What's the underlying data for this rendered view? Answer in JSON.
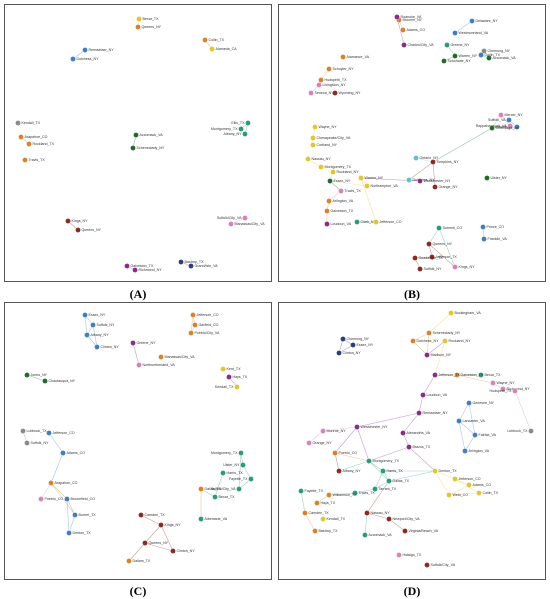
{
  "colors": {
    "green": "#1f6b2a",
    "orange": "#d9822b",
    "yellow": "#e3c62b",
    "blue": "#3f7fc0",
    "purple": "#8a2b8a",
    "teal": "#2a9a7a",
    "darkred": "#8c2a22",
    "pink": "#d583b8",
    "gray": "#8a8a8a",
    "cyan": "#5cc3c9",
    "navy": "#2a3f7a",
    "lavender": "#b79bd6",
    "edge": "#c7b3cf"
  },
  "panels": [
    {
      "id": "A",
      "caption": "(A)",
      "nodes": [
        {
          "label": "Bexar_TX",
          "color": "yellow"
        },
        {
          "label": "Queens_NY",
          "color": "orange"
        },
        {
          "label": "Collin_TX",
          "color": "orange"
        },
        {
          "label": "Alameda_CA",
          "color": "yellow"
        },
        {
          "label": "Rensselaer_NY",
          "color": "blue"
        },
        {
          "label": "Dutchess_NY",
          "color": "blue"
        },
        {
          "label": "Kendall_TX",
          "color": "gray"
        },
        {
          "label": "Arapahoe_CO",
          "color": "orange"
        },
        {
          "label": "Rockland_TX",
          "color": "orange"
        },
        {
          "label": "Travis_TX",
          "color": "orange"
        },
        {
          "label": "Accomack_VA",
          "color": "green"
        },
        {
          "label": "Schenectady_NY",
          "color": "green"
        },
        {
          "label": "Ellis_TX",
          "color": "teal"
        },
        {
          "label": "Montgomery_TX",
          "color": "teal"
        },
        {
          "label": "Albany_NY",
          "color": "teal"
        },
        {
          "label": "Kings_NY",
          "color": "darkred"
        },
        {
          "label": "Queens_NY",
          "color": "darkred"
        },
        {
          "label": "Suffolk/City_VA",
          "color": "pink"
        },
        {
          "label": "Manassas/City_VA",
          "color": "pink"
        },
        {
          "label": "Galveston_TX",
          "color": "purple"
        },
        {
          "label": "Richmond_NY",
          "color": "purple"
        },
        {
          "label": "Bastrop_TX",
          "color": "navy"
        },
        {
          "label": "Grand/Isle_VA",
          "color": "navy"
        }
      ]
    },
    {
      "id": "B",
      "caption": "(B)",
      "nodes": [
        {
          "label": "Broome_NY",
          "color": "orange"
        },
        {
          "label": "Adams_CO",
          "color": "orange"
        },
        {
          "label": "Roanoke_VA",
          "color": "purple"
        },
        {
          "label": "Charles/City_VA",
          "color": "purple"
        },
        {
          "label": "Delaware_NY",
          "color": "blue"
        },
        {
          "label": "Westmoreland_VA",
          "color": "blue"
        },
        {
          "label": "Greene_NY",
          "color": "teal"
        },
        {
          "label": "Warren_NY",
          "color": "green"
        },
        {
          "label": "Schoharie_NY",
          "color": "green"
        },
        {
          "label": "Chemung_NY",
          "color": "gray"
        },
        {
          "label": "Accomack_VA",
          "color": "green"
        },
        {
          "label": "Collin_TX",
          "color": "blue"
        },
        {
          "label": "Alamance_VA",
          "color": "orange"
        },
        {
          "label": "Schuyler_NY",
          "color": "orange"
        },
        {
          "label": "Hudspeth_TX",
          "color": "orange"
        },
        {
          "label": "Livingston_NY",
          "color": "pink"
        },
        {
          "label": "Seneca_NY",
          "color": "pink"
        },
        {
          "label": "Wyoming_NY",
          "color": "darkred"
        },
        {
          "label": "Suffolk_VA",
          "color": "blue"
        },
        {
          "label": "Lubbock_TX",
          "color": "blue"
        },
        {
          "label": "Wayne_NY",
          "color": "yellow"
        },
        {
          "label": "Chesapeake/City_VA",
          "color": "yellow"
        },
        {
          "label": "Cortland_NY",
          "color": "yellow"
        },
        {
          "label": "Nassau_NY",
          "color": "yellow"
        },
        {
          "label": "Montgomery_TX",
          "color": "yellow"
        },
        {
          "label": "Rockland_NY",
          "color": "yellow"
        },
        {
          "label": "Ontario_NY",
          "color": "cyan"
        },
        {
          "label": "Tompkins_NY",
          "color": "darkred"
        },
        {
          "label": "Orange_NY",
          "color": "darkred"
        },
        {
          "label": "Mercer_NY",
          "color": "pink"
        },
        {
          "label": "Rappahannock_VA",
          "color": "pink"
        },
        {
          "label": "Onondaga_NY",
          "color": "green"
        },
        {
          "label": "Ulster_NY",
          "color": "green"
        },
        {
          "label": "Dutchess_NY",
          "color": "cyan"
        },
        {
          "label": "Westchester_NY",
          "color": "purple"
        },
        {
          "label": "Warren_NY",
          "color": "yellow"
        },
        {
          "label": "Northampton_VA",
          "color": "yellow"
        },
        {
          "label": "Essex_NY",
          "color": "green"
        },
        {
          "label": "Travis_TX",
          "color": "pink"
        },
        {
          "label": "Arlington_VA",
          "color": "orange"
        },
        {
          "label": "Galveston_TX",
          "color": "orange"
        },
        {
          "label": "Loudoun_VA",
          "color": "purple"
        },
        {
          "label": "Clark_NY",
          "color": "teal"
        },
        {
          "label": "Jefferson_CO",
          "color": "yellow"
        },
        {
          "label": "Summit_CO",
          "color": "teal"
        },
        {
          "label": "Queens_NY",
          "color": "darkred"
        },
        {
          "label": "Jefferson_TX",
          "color": "darkred"
        },
        {
          "label": "Guadalupe_TX",
          "color": "darkred"
        },
        {
          "label": "Suffolk_NY",
          "color": "darkred"
        },
        {
          "label": "Kings_NY",
          "color": "pink"
        },
        {
          "label": "Prince_CO",
          "color": "blue"
        },
        {
          "label": "Franklin_VA",
          "color": "blue"
        }
      ]
    },
    {
      "id": "C",
      "caption": "(C)",
      "nodes": [
        {
          "label": "Essex_NY",
          "color": "blue"
        },
        {
          "label": "Suffolk_NY",
          "color": "blue"
        },
        {
          "label": "Albany_NY",
          "color": "blue"
        },
        {
          "label": "Clinton_NY",
          "color": "blue"
        },
        {
          "label": "Jefferson_CO",
          "color": "orange"
        },
        {
          "label": "Garfield_CO",
          "color": "orange"
        },
        {
          "label": "Pueblo/City_VA",
          "color": "orange"
        },
        {
          "label": "Greene_NY",
          "color": "purple"
        },
        {
          "label": "Northumberland_VA",
          "color": "pink"
        },
        {
          "label": "Manassas/City_VA",
          "color": "orange"
        },
        {
          "label": "Jones_NY",
          "color": "green"
        },
        {
          "label": "Chautauqua_NY",
          "color": "green"
        },
        {
          "label": "Kent_TX",
          "color": "yellow"
        },
        {
          "label": "Hays_TX",
          "color": "purple"
        },
        {
          "label": "Kendall_TX",
          "color": "yellow"
        },
        {
          "label": "Lubbock_TX",
          "color": "gray"
        },
        {
          "label": "Suffolk_NY",
          "color": "gray"
        },
        {
          "label": "Jefferson_CO",
          "color": "blue"
        },
        {
          "label": "Adams_CO",
          "color": "blue"
        },
        {
          "label": "Arapahoe_CO",
          "color": "orange"
        },
        {
          "label": "Broomfield_CO",
          "color": "blue"
        },
        {
          "label": "Burnet_TX",
          "color": "blue"
        },
        {
          "label": "Denton_TX",
          "color": "blue"
        },
        {
          "label": "Pueblo_CO",
          "color": "pink"
        },
        {
          "label": "Montgomery_TX",
          "color": "teal"
        },
        {
          "label": "Ulster_NY",
          "color": "teal"
        },
        {
          "label": "Fayette_TX",
          "color": "teal"
        },
        {
          "label": "Suffolk/City_VA",
          "color": "teal"
        },
        {
          "label": "Harris_TX",
          "color": "teal"
        },
        {
          "label": "Bexar_TX",
          "color": "teal"
        },
        {
          "label": "Dallas_TX",
          "color": "orange"
        },
        {
          "label": "Albemarle_VA",
          "color": "teal"
        },
        {
          "label": "Camden_TX",
          "color": "darkred"
        },
        {
          "label": "Kings_NY",
          "color": "darkred"
        },
        {
          "label": "Queens_NY",
          "color": "darkred"
        },
        {
          "label": "Clinton_NY",
          "color": "darkred"
        },
        {
          "label": "Dallam_TX",
          "color": "orange"
        }
      ]
    },
    {
      "id": "D",
      "caption": "(D)",
      "nodes": [
        {
          "label": "Buckingham_VA",
          "color": "yellow"
        },
        {
          "label": "Schenectady_NY",
          "color": "orange"
        },
        {
          "label": "Dutchess_NY",
          "color": "orange"
        },
        {
          "label": "Madison_NY",
          "color": "purple"
        },
        {
          "label": "Rockland_NY",
          "color": "yellow"
        },
        {
          "label": "Chemung_NY",
          "color": "navy"
        },
        {
          "label": "Essex_NY",
          "color": "navy"
        },
        {
          "label": "Clinton_NY",
          "color": "navy"
        },
        {
          "label": "Bexar_TX",
          "color": "teal"
        },
        {
          "label": "Galveston_TX",
          "color": "orange"
        },
        {
          "label": "Wayne_NY",
          "color": "pink"
        },
        {
          "label": "Richmond_NY",
          "color": "pink"
        },
        {
          "label": "Hudspeth_TX",
          "color": "pink"
        },
        {
          "label": "Lubbock_TX",
          "color": "gray"
        },
        {
          "label": "Jefferson_TX",
          "color": "purple"
        },
        {
          "label": "Loudoun_VA",
          "color": "purple"
        },
        {
          "label": "Rensselaer_NY",
          "color": "purple"
        },
        {
          "label": "Genesee_NY",
          "color": "blue"
        },
        {
          "label": "Lancaster_VA",
          "color": "blue"
        },
        {
          "label": "Fairfax_VA",
          "color": "blue"
        },
        {
          "label": "Arlington_VA",
          "color": "blue"
        },
        {
          "label": "Brazos_TX",
          "color": "purple"
        },
        {
          "label": "Denton_TX",
          "color": "yellow"
        },
        {
          "label": "Jefferson_CO",
          "color": "yellow"
        },
        {
          "label": "Adams_CO",
          "color": "yellow"
        },
        {
          "label": "Weld_CO",
          "color": "yellow"
        },
        {
          "label": "Collin_TX",
          "color": "yellow"
        },
        {
          "label": "Montgomery_TX",
          "color": "teal"
        },
        {
          "label": "Harris_TX",
          "color": "teal"
        },
        {
          "label": "Dallas_TX",
          "color": "teal"
        },
        {
          "label": "Tarrant_TX",
          "color": "teal"
        },
        {
          "label": "Travis_TX",
          "color": "teal"
        },
        {
          "label": "Williamson_TX",
          "color": "orange"
        },
        {
          "label": "Hays_TX",
          "color": "orange"
        },
        {
          "label": "Albany_NY",
          "color": "darkred"
        },
        {
          "label": "Pueblo_CO",
          "color": "orange"
        },
        {
          "label": "Alexandria_VA",
          "color": "purple"
        },
        {
          "label": "Nassau_NY",
          "color": "darkred"
        },
        {
          "label": "Newport/City_VA",
          "color": "darkred"
        },
        {
          "label": "Virginia/Beach_VA",
          "color": "darkred"
        },
        {
          "label": "Suffolk/City_VA",
          "color": "darkred"
        },
        {
          "label": "Accomack_VA",
          "color": "teal"
        },
        {
          "label": "Kendall_TX",
          "color": "yellow"
        },
        {
          "label": "Orange_NY",
          "color": "pink"
        },
        {
          "label": "Monroe_NY",
          "color": "pink"
        },
        {
          "label": "Westchester_NY",
          "color": "purple"
        },
        {
          "label": "Fayette_TX",
          "color": "teal"
        },
        {
          "label": "Camden_TX",
          "color": "orange"
        },
        {
          "label": "Bastrop_TX",
          "color": "orange"
        },
        {
          "label": "Hidalgo_TX",
          "color": "pink"
        }
      ]
    }
  ]
}
